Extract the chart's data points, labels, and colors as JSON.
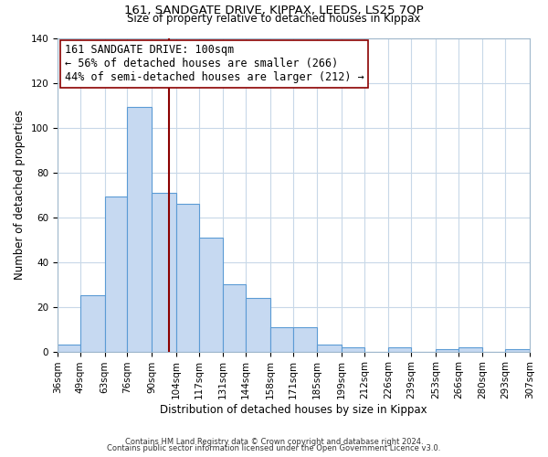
{
  "title": "161, SANDGATE DRIVE, KIPPAX, LEEDS, LS25 7QP",
  "subtitle": "Size of property relative to detached houses in Kippax",
  "xlabel": "Distribution of detached houses by size in Kippax",
  "ylabel": "Number of detached properties",
  "bin_labels": [
    "36sqm",
    "49sqm",
    "63sqm",
    "76sqm",
    "90sqm",
    "104sqm",
    "117sqm",
    "131sqm",
    "144sqm",
    "158sqm",
    "171sqm",
    "185sqm",
    "199sqm",
    "212sqm",
    "226sqm",
    "239sqm",
    "253sqm",
    "266sqm",
    "280sqm",
    "293sqm",
    "307sqm"
  ],
  "bar_values": [
    3,
    25,
    69,
    109,
    71,
    66,
    51,
    30,
    24,
    11,
    11,
    3,
    2,
    0,
    2,
    0,
    1,
    2,
    0,
    1
  ],
  "bin_edges": [
    36,
    49,
    63,
    76,
    90,
    104,
    117,
    131,
    144,
    158,
    171,
    185,
    199,
    212,
    226,
    239,
    253,
    266,
    280,
    293,
    307
  ],
  "bar_color": "#c6d9f1",
  "bar_edge_color": "#5b9bd5",
  "vline_x": 100,
  "vline_color": "#8b0000",
  "annotation_line1": "161 SANDGATE DRIVE: 100sqm",
  "annotation_line2": "← 56% of detached houses are smaller (266)",
  "annotation_line3": "44% of semi-detached houses are larger (212) →",
  "annotation_box_color": "#ffffff",
  "annotation_box_edge": "#8b0000",
  "ylim": [
    0,
    140
  ],
  "yticks": [
    0,
    20,
    40,
    60,
    80,
    100,
    120,
    140
  ],
  "footnote1": "Contains HM Land Registry data © Crown copyright and database right 2024.",
  "footnote2": "Contains public sector information licensed under the Open Government Licence v3.0.",
  "title_fontsize": 9.5,
  "subtitle_fontsize": 8.5,
  "axis_label_fontsize": 8.5,
  "tick_fontsize": 7.5,
  "annotation_fontsize": 8.5,
  "footnote_fontsize": 6.0
}
